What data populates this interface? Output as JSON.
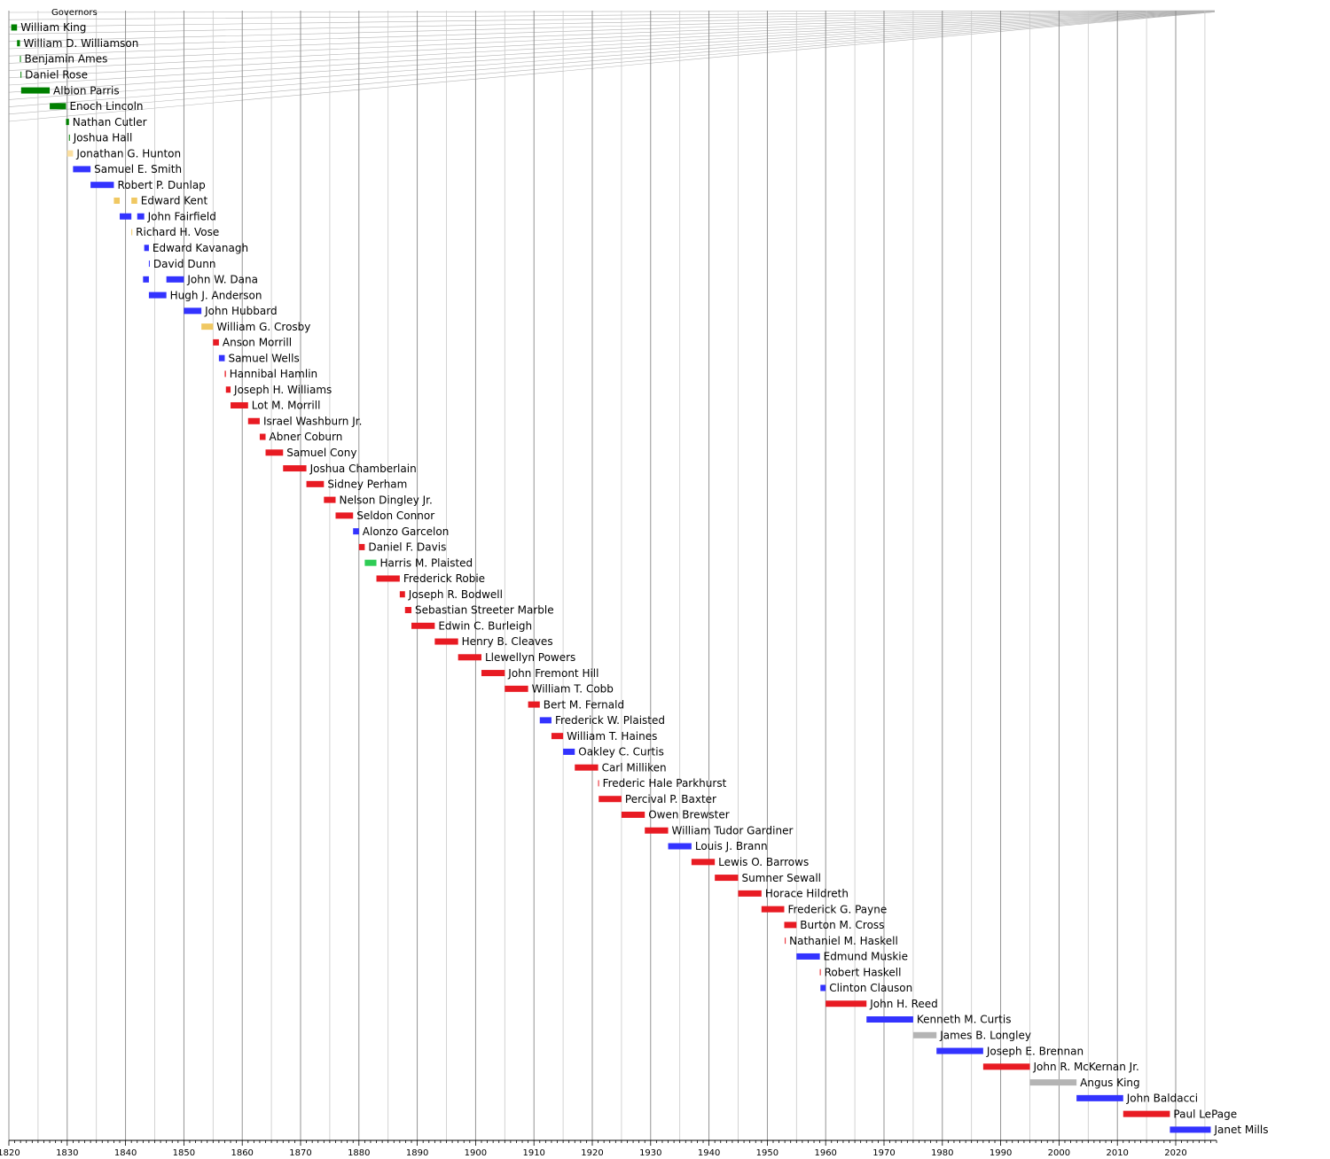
{
  "colors": {
    "federalist_dr": "#008000",
    "national_republican": "#fbdfa0",
    "whig": "#f0c862",
    "democratic": "#3333ff",
    "republican": "#e81b23",
    "greenback": "#2ecc55",
    "independent": "#b4b4b4",
    "background": "#ffffff",
    "major_grid": "#888888",
    "minor_grid": "#c8c8c8",
    "decor_line": "#b4b4b4"
  },
  "chart_data": {
    "type": "bar",
    "orientation": "horizontal-timeline",
    "title": "Governors",
    "xlabel": "",
    "ylabel": "",
    "xlim": [
      1820,
      2027
    ],
    "x_ticks": [
      1820,
      1830,
      1840,
      1850,
      1860,
      1870,
      1880,
      1890,
      1900,
      1910,
      1920,
      1930,
      1940,
      1950,
      1960,
      1970,
      1980,
      1990,
      2000,
      2010,
      2020
    ],
    "minor_tick_step": 1,
    "grid": true,
    "legend": "none",
    "series": [
      {
        "name": "William King",
        "terms": [
          [
            1820.4,
            1821.4
          ]
        ],
        "color": "#008000"
      },
      {
        "name": "William D. Williamson",
        "terms": [
          [
            1821.4,
            1821.9
          ]
        ],
        "color": "#008000"
      },
      {
        "name": "Benjamin Ames",
        "terms": [
          [
            1821.9,
            1822.0
          ]
        ],
        "color": "#008000"
      },
      {
        "name": "Daniel Rose",
        "terms": [
          [
            1822.0,
            1822.1
          ]
        ],
        "color": "#008000"
      },
      {
        "name": "Albion Parris",
        "terms": [
          [
            1822.1,
            1827.0
          ]
        ],
        "color": "#008000"
      },
      {
        "name": "Enoch Lincoln",
        "terms": [
          [
            1827.0,
            1829.8
          ]
        ],
        "color": "#008000"
      },
      {
        "name": "Nathan Cutler",
        "terms": [
          [
            1829.8,
            1830.3
          ]
        ],
        "color": "#008000"
      },
      {
        "name": "Joshua Hall",
        "terms": [
          [
            1830.3,
            1830.4
          ]
        ],
        "color": "#008000"
      },
      {
        "name": "Jonathan G. Hunton",
        "terms": [
          [
            1830.0,
            1831.0
          ]
        ],
        "color": "#fbdfa0"
      },
      {
        "name": "Samuel E. Smith",
        "terms": [
          [
            1831.0,
            1834.0
          ]
        ],
        "color": "#3333ff"
      },
      {
        "name": "Robert P. Dunlap",
        "terms": [
          [
            1834.0,
            1838.0
          ]
        ],
        "color": "#3333ff"
      },
      {
        "name": "Edward Kent",
        "terms": [
          [
            1838.0,
            1839.0
          ],
          [
            1841.0,
            1842.0
          ]
        ],
        "color": "#f0c862"
      },
      {
        "name": "John Fairfield",
        "terms": [
          [
            1839.0,
            1841.0
          ],
          [
            1842.0,
            1843.2
          ]
        ],
        "color": "#3333ff"
      },
      {
        "name": "Richard H. Vose",
        "terms": [
          [
            1841.0,
            1841.1
          ]
        ],
        "color": "#f0c862"
      },
      {
        "name": "Edward Kavanagh",
        "terms": [
          [
            1843.2,
            1844.0
          ]
        ],
        "color": "#3333ff"
      },
      {
        "name": "David Dunn",
        "terms": [
          [
            1844.0,
            1844.1
          ]
        ],
        "color": "#3333ff"
      },
      {
        "name": "John W. Dana",
        "terms": [
          [
            1843.0,
            1844.0
          ],
          [
            1847.0,
            1850.0
          ]
        ],
        "color": "#3333ff"
      },
      {
        "name": "Hugh J. Anderson",
        "terms": [
          [
            1844.0,
            1847.0
          ]
        ],
        "color": "#3333ff"
      },
      {
        "name": "John Hubbard",
        "terms": [
          [
            1850.0,
            1853.0
          ]
        ],
        "color": "#3333ff"
      },
      {
        "name": "William G. Crosby",
        "terms": [
          [
            1853.0,
            1855.0
          ]
        ],
        "color": "#f0c862"
      },
      {
        "name": "Anson Morrill",
        "terms": [
          [
            1855.0,
            1856.0
          ]
        ],
        "color": "#e81b23"
      },
      {
        "name": "Samuel Wells",
        "terms": [
          [
            1856.0,
            1857.0
          ]
        ],
        "color": "#3333ff"
      },
      {
        "name": "Hannibal Hamlin",
        "terms": [
          [
            1857.0,
            1857.2
          ]
        ],
        "color": "#e81b23"
      },
      {
        "name": "Joseph H. Williams",
        "terms": [
          [
            1857.2,
            1858.0
          ]
        ],
        "color": "#e81b23"
      },
      {
        "name": "Lot M. Morrill",
        "terms": [
          [
            1858.0,
            1861.0
          ]
        ],
        "color": "#e81b23"
      },
      {
        "name": "Israel Washburn Jr.",
        "terms": [
          [
            1861.0,
            1863.0
          ]
        ],
        "color": "#e81b23"
      },
      {
        "name": "Abner Coburn",
        "terms": [
          [
            1863.0,
            1864.0
          ]
        ],
        "color": "#e81b23"
      },
      {
        "name": "Samuel Cony",
        "terms": [
          [
            1864.0,
            1867.0
          ]
        ],
        "color": "#e81b23"
      },
      {
        "name": "Joshua Chamberlain",
        "terms": [
          [
            1867.0,
            1871.0
          ]
        ],
        "color": "#e81b23"
      },
      {
        "name": "Sidney Perham",
        "terms": [
          [
            1871.0,
            1874.0
          ]
        ],
        "color": "#e81b23"
      },
      {
        "name": "Nelson Dingley Jr.",
        "terms": [
          [
            1874.0,
            1876.0
          ]
        ],
        "color": "#e81b23"
      },
      {
        "name": "Seldon Connor",
        "terms": [
          [
            1876.0,
            1879.0
          ]
        ],
        "color": "#e81b23"
      },
      {
        "name": "Alonzo Garcelon",
        "terms": [
          [
            1879.0,
            1880.0
          ]
        ],
        "color": "#3333ff"
      },
      {
        "name": "Daniel F. Davis",
        "terms": [
          [
            1880.0,
            1881.0
          ]
        ],
        "color": "#e81b23"
      },
      {
        "name": "Harris M. Plaisted",
        "terms": [
          [
            1881.0,
            1883.0
          ]
        ],
        "color": "#2ecc55"
      },
      {
        "name": "Frederick Robie",
        "terms": [
          [
            1883.0,
            1887.0
          ]
        ],
        "color": "#e81b23"
      },
      {
        "name": "Joseph R. Bodwell",
        "terms": [
          [
            1887.0,
            1887.9
          ]
        ],
        "color": "#e81b23"
      },
      {
        "name": "Sebastian Streeter Marble",
        "terms": [
          [
            1887.9,
            1889.0
          ]
        ],
        "color": "#e81b23"
      },
      {
        "name": "Edwin C. Burleigh",
        "terms": [
          [
            1889.0,
            1893.0
          ]
        ],
        "color": "#e81b23"
      },
      {
        "name": "Henry B. Cleaves",
        "terms": [
          [
            1893.0,
            1897.0
          ]
        ],
        "color": "#e81b23"
      },
      {
        "name": "Llewellyn Powers",
        "terms": [
          [
            1897.0,
            1901.0
          ]
        ],
        "color": "#e81b23"
      },
      {
        "name": "John Fremont Hill",
        "terms": [
          [
            1901.0,
            1905.0
          ]
        ],
        "color": "#e81b23"
      },
      {
        "name": "William T. Cobb",
        "terms": [
          [
            1905.0,
            1909.0
          ]
        ],
        "color": "#e81b23"
      },
      {
        "name": "Bert M. Fernald",
        "terms": [
          [
            1909.0,
            1911.0
          ]
        ],
        "color": "#e81b23"
      },
      {
        "name": "Frederick W. Plaisted",
        "terms": [
          [
            1911.0,
            1913.0
          ]
        ],
        "color": "#3333ff"
      },
      {
        "name": "William T. Haines",
        "terms": [
          [
            1913.0,
            1915.0
          ]
        ],
        "color": "#e81b23"
      },
      {
        "name": "Oakley C. Curtis",
        "terms": [
          [
            1915.0,
            1917.0
          ]
        ],
        "color": "#3333ff"
      },
      {
        "name": "Carl Milliken",
        "terms": [
          [
            1917.0,
            1921.0
          ]
        ],
        "color": "#e81b23"
      },
      {
        "name": "Frederic Hale Parkhurst",
        "terms": [
          [
            1921.0,
            1921.1
          ]
        ],
        "color": "#e81b23"
      },
      {
        "name": "Percival P. Baxter",
        "terms": [
          [
            1921.1,
            1925.0
          ]
        ],
        "color": "#e81b23"
      },
      {
        "name": "Owen Brewster",
        "terms": [
          [
            1925.0,
            1929.0
          ]
        ],
        "color": "#e81b23"
      },
      {
        "name": "William Tudor Gardiner",
        "terms": [
          [
            1929.0,
            1933.0
          ]
        ],
        "color": "#e81b23"
      },
      {
        "name": "Louis J. Brann",
        "terms": [
          [
            1933.0,
            1937.0
          ]
        ],
        "color": "#3333ff"
      },
      {
        "name": "Lewis O. Barrows",
        "terms": [
          [
            1937.0,
            1941.0
          ]
        ],
        "color": "#e81b23"
      },
      {
        "name": "Sumner Sewall",
        "terms": [
          [
            1941.0,
            1945.0
          ]
        ],
        "color": "#e81b23"
      },
      {
        "name": "Horace Hildreth",
        "terms": [
          [
            1945.0,
            1949.0
          ]
        ],
        "color": "#e81b23"
      },
      {
        "name": "Frederick G. Payne",
        "terms": [
          [
            1949.0,
            1952.9
          ]
        ],
        "color": "#e81b23"
      },
      {
        "name": "Burton M. Cross",
        "terms": [
          [
            1952.9,
            1955.0
          ]
        ],
        "color": "#e81b23"
      },
      {
        "name": "Nathaniel M. Haskell",
        "terms": [
          [
            1953.0,
            1953.1
          ]
        ],
        "color": "#e81b23"
      },
      {
        "name": "Edmund Muskie",
        "terms": [
          [
            1955.0,
            1959.0
          ]
        ],
        "color": "#3333ff"
      },
      {
        "name": "Robert Haskell",
        "terms": [
          [
            1959.0,
            1959.1
          ]
        ],
        "color": "#e81b23"
      },
      {
        "name": "Clinton Clauson",
        "terms": [
          [
            1959.1,
            1960.0
          ]
        ],
        "color": "#3333ff"
      },
      {
        "name": "John H. Reed",
        "terms": [
          [
            1960.0,
            1967.0
          ]
        ],
        "color": "#e81b23"
      },
      {
        "name": "Kenneth M. Curtis",
        "terms": [
          [
            1967.0,
            1975.0
          ]
        ],
        "color": "#3333ff"
      },
      {
        "name": "James B. Longley",
        "terms": [
          [
            1975.0,
            1979.0
          ]
        ],
        "color": "#b4b4b4"
      },
      {
        "name": "Joseph E. Brennan",
        "terms": [
          [
            1979.0,
            1987.0
          ]
        ],
        "color": "#3333ff"
      },
      {
        "name": "John R. McKernan Jr.",
        "terms": [
          [
            1987.0,
            1995.0
          ]
        ],
        "color": "#e81b23"
      },
      {
        "name": "Angus King",
        "terms": [
          [
            1995.0,
            2003.0
          ]
        ],
        "color": "#b4b4b4"
      },
      {
        "name": "John Baldacci",
        "terms": [
          [
            2003.0,
            2011.0
          ]
        ],
        "color": "#3333ff"
      },
      {
        "name": "Paul LePage",
        "terms": [
          [
            2011.0,
            2019.0
          ]
        ],
        "color": "#e81b23"
      },
      {
        "name": "Janet Mills",
        "terms": [
          [
            2019.0,
            2026.0
          ]
        ],
        "color": "#3333ff"
      }
    ]
  }
}
